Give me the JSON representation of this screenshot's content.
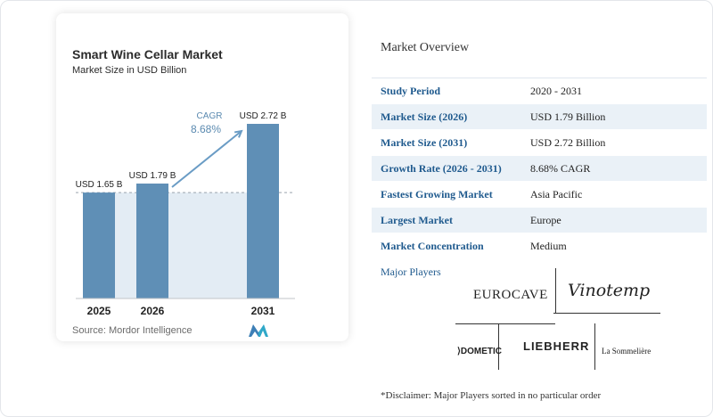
{
  "chart": {
    "title": "Smart Wine Cellar Market",
    "subtitle": "Market Size in USD Billion",
    "source": "Source:  Mordor Intelligence",
    "cagr_label": "CAGR",
    "cagr_value": "8.68%",
    "colors": {
      "bar": "#5f8fb6",
      "shade": "#e3ecf4",
      "arrow": "#6a9cc5",
      "baseline": "#c0c4c8"
    }
  },
  "chart_data": {
    "type": "bar",
    "title": "Smart Wine Cellar Market",
    "subtitle": "Market Size in USD Billion",
    "categories": [
      "2025",
      "2026",
      "2031"
    ],
    "values": [
      1.65,
      1.79,
      2.72
    ],
    "value_labels": [
      "USD 1.65 B",
      "USD 1.79 B",
      "USD 2.72 B"
    ],
    "annotation": {
      "text": "CAGR",
      "value": "8.68%",
      "from": "2026",
      "to": "2031"
    },
    "ylim": [
      0,
      2.72
    ],
    "grid": false
  },
  "overview": {
    "title": "Market Overview",
    "rows": [
      {
        "key": "Study Period",
        "value": "2020 - 2031"
      },
      {
        "key": "Market Size (2026)",
        "value": "USD 1.79 Billion"
      },
      {
        "key": "Market Size (2031)",
        "value": "USD 2.72 Billion"
      },
      {
        "key": "Growth Rate (2026 - 2031)",
        "value": "8.68% CAGR"
      },
      {
        "key": "Fastest Growing Market",
        "value": "Asia Pacific"
      },
      {
        "key": "Largest Market",
        "value": "Europe"
      },
      {
        "key": "Market Concentration",
        "value": "Medium"
      }
    ]
  },
  "players": {
    "title": "Major Players",
    "logos": [
      "EUROCAVE",
      "Vinotemp",
      "DOMETIC",
      "LIEBHERR",
      "La Sommelière"
    ]
  },
  "disclaimer": "*Disclaimer: Major Players sorted in no particular order"
}
